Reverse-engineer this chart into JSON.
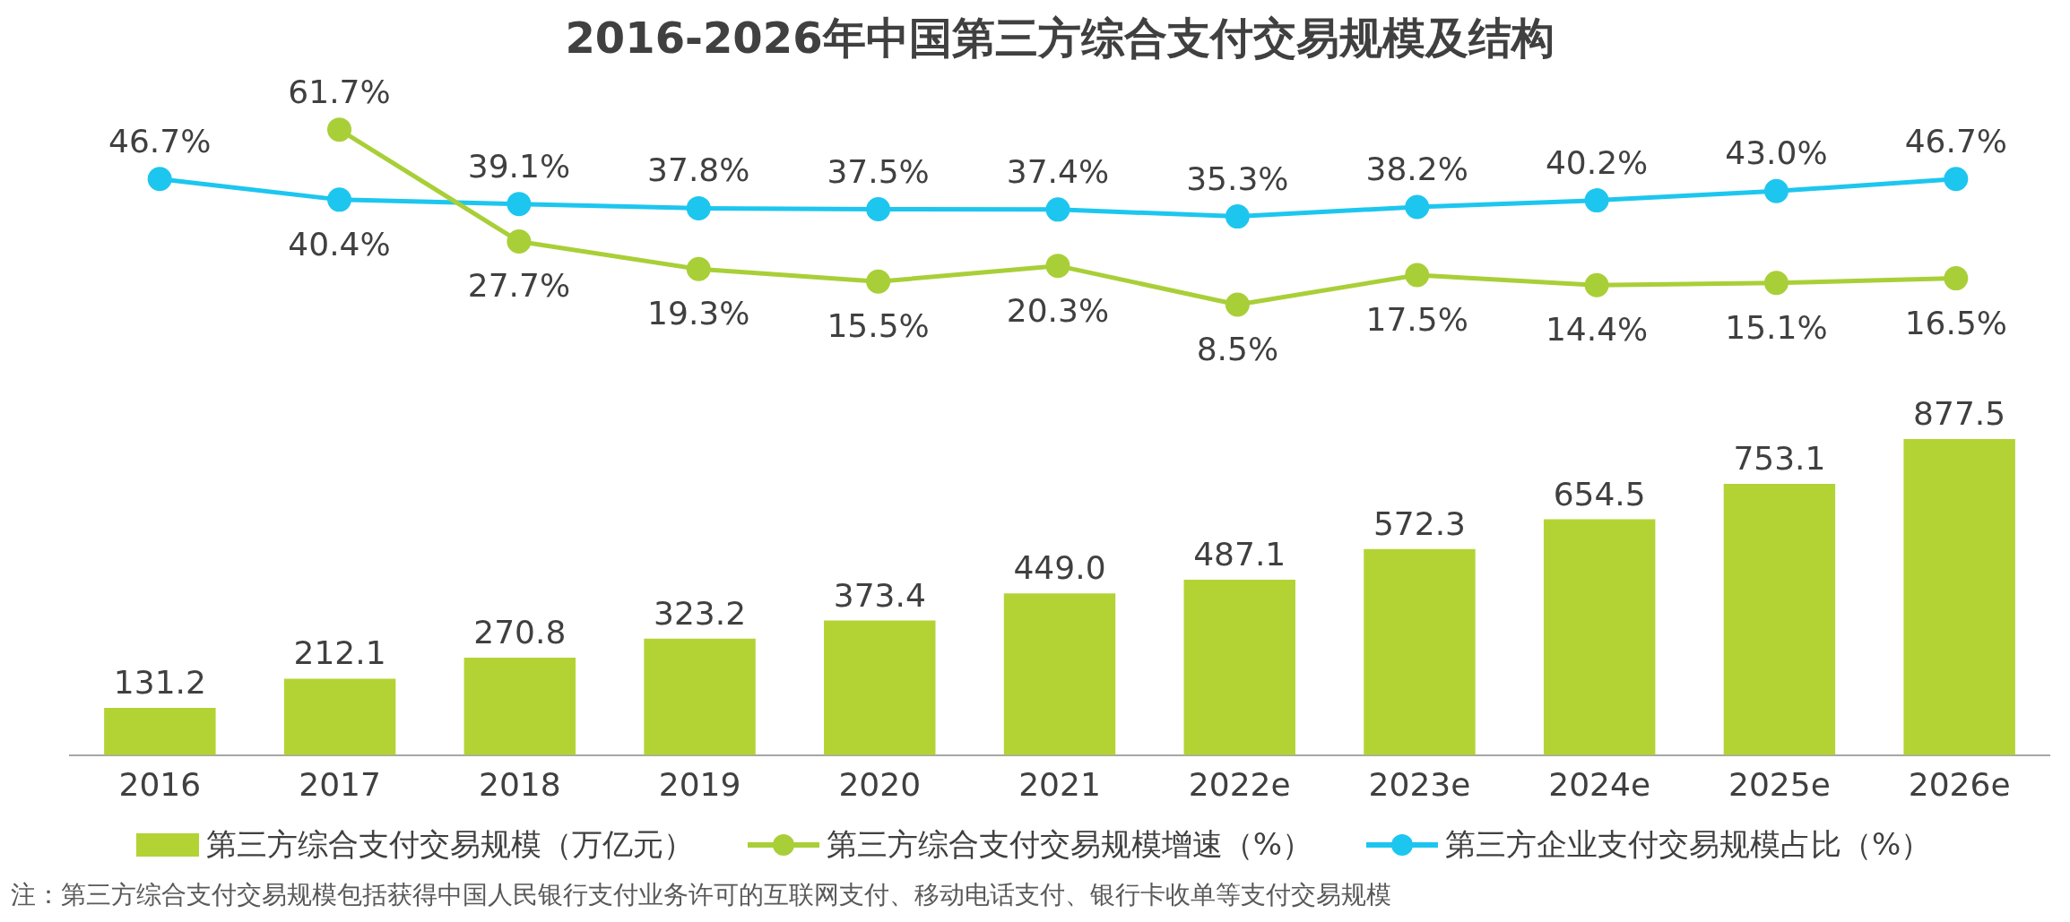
{
  "chart_data": [
    {
      "type": "line",
      "title": "2016-2026年中国第三方综合支付交易规模及结构",
      "categories": [
        null,
        null,
        null,
        null,
        null,
        null,
        null,
        null,
        null,
        null,
        null
      ],
      "series": [
        {
          "name": "第三方综合支付交易规模增速（%）",
          "color": "#a9cf38",
          "values": [
            null,
            61.7,
            27.7,
            19.3,
            15.5,
            20.3,
            8.5,
            17.5,
            14.4,
            15.1,
            16.5
          ],
          "value_labels": [
            null,
            "61.7%",
            "27.7%",
            "19.3%",
            "15.5%",
            "20.3%",
            "8.5%",
            "17.5%",
            "14.4%",
            "15.1%",
            "16.5%"
          ]
        },
        {
          "name": "第三方企业支付交易规模占比（%）",
          "color": "#1dc6ef",
          "values": [
            46.7,
            40.4,
            39.1,
            37.8,
            37.5,
            37.4,
            35.3,
            38.2,
            40.2,
            43.0,
            46.7
          ],
          "value_labels": [
            "46.7%",
            "40.4%",
            "39.1%",
            "37.8%",
            "37.5%",
            "37.4%",
            "35.3%",
            "38.2%",
            "40.2%",
            "43.0%",
            "46.7%"
          ]
        }
      ],
      "grid": false,
      "legend": "bottom",
      "marker": "circle",
      "tick_labels": false
    },
    {
      "type": "bar",
      "categories": [
        "2016",
        "2017",
        "2018",
        "2019",
        "2020",
        "2021",
        "2022e",
        "2023e",
        "2024e",
        "2025e",
        "2026e"
      ],
      "series": [
        {
          "name": "第三方综合支付交易规模（万亿元）",
          "color": "#b3d335",
          "values": [
            131.2,
            212.1,
            270.8,
            323.2,
            373.4,
            449.0,
            487.1,
            572.3,
            654.5,
            753.1,
            877.5
          ],
          "value_labels": [
            "131.2",
            "212.1",
            "270.8",
            "323.2",
            "373.4",
            "449.0",
            "487.1",
            "572.3",
            "654.5",
            "753.1",
            "877.5"
          ]
        }
      ],
      "grid": false,
      "legend": "bottom",
      "tick_labels": "x",
      "annotations": [
        "注：第三方综合支付交易规模包括获得中国人民银行支付业务许可的互联网支付、移动电话支付、银行卡收单等支付交易规模"
      ]
    }
  ]
}
